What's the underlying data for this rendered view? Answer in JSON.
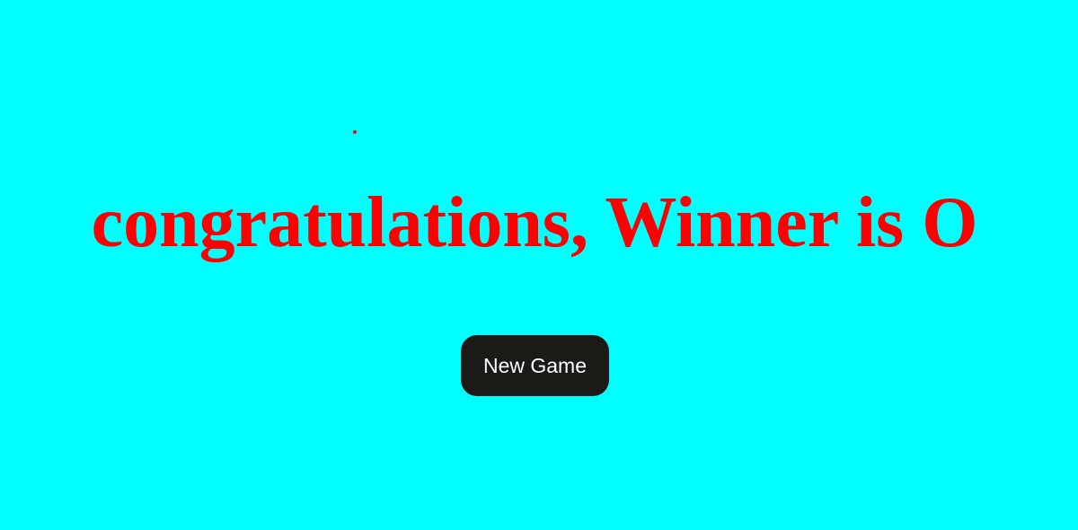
{
  "colors": {
    "background": "#00FFFF",
    "message": "#FF0000",
    "button_background": "#1B1A16",
    "button_text": "#FFFFFF"
  },
  "message": {
    "text": "congratulations, Winner is O"
  },
  "button": {
    "label": "New Game"
  }
}
